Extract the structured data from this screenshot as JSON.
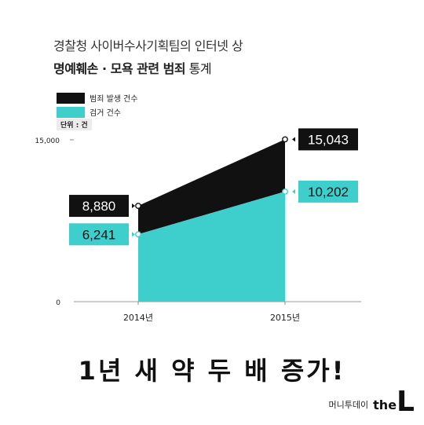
{
  "header": {
    "line1": "경찰청 사이버수사기획팀의 인터넷 상",
    "line2_bold": "명예훼손 · 모욕 관련 범죄",
    "line2_rest": " 통계"
  },
  "legend": [
    {
      "label": "범죄 발생 건수",
      "color": "#111111"
    },
    {
      "label": "검거 건수",
      "color": "#3ecfcc"
    }
  ],
  "unit": "단위 : 건",
  "chart_data": {
    "type": "area",
    "categories": [
      "2014년",
      "2015년"
    ],
    "series": [
      {
        "name": "범죄 발생 건수",
        "values": [
          8880,
          15043
        ],
        "labels": [
          "8,880",
          "15,043"
        ],
        "color": "#111111"
      },
      {
        "name": "검거 건수",
        "values": [
          6241,
          10202
        ],
        "labels": [
          "6,241",
          "10,202"
        ],
        "color": "#3ecfcc"
      }
    ],
    "yticks": [
      {
        "value": 0,
        "label": "0"
      },
      {
        "value": 15000,
        "label": "15,000"
      }
    ],
    "ylim": [
      0,
      15000
    ],
    "grid": false
  },
  "footer": {
    "headline": "1년 새 약 두 배 증가!",
    "brand_kr": "머니투데이",
    "brand_the": "the",
    "brand_l": "L"
  }
}
